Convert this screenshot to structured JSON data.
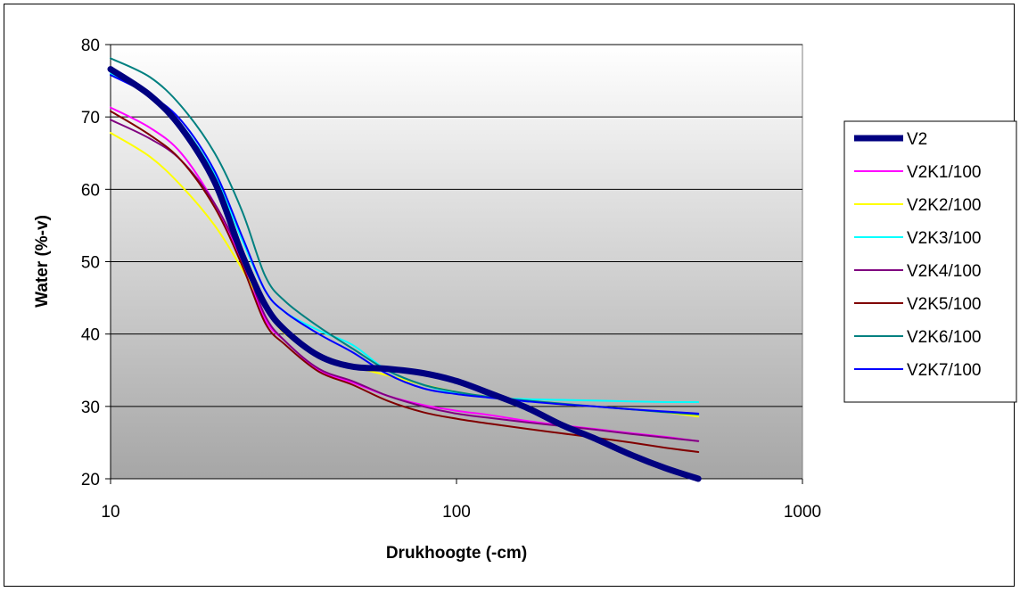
{
  "chart_data": {
    "type": "line",
    "title": "",
    "xlabel": "Drukhoogte (-cm)",
    "ylabel": "Water (%-v)",
    "xscale": "log",
    "xlim": [
      10,
      1000
    ],
    "ylim": [
      20,
      80
    ],
    "x_ticks": [
      "10",
      "100",
      "1000"
    ],
    "y_ticks": [
      "20",
      "30",
      "40",
      "50",
      "60",
      "70",
      "80"
    ],
    "grid": "horizontal",
    "legend_position": "right",
    "background": "gradient light-gray to dark-gray",
    "series": [
      {
        "name": "V2",
        "color": "#000080",
        "weight": "thick",
        "points": [
          [
            10,
            76.6
          ],
          [
            13,
            73
          ],
          [
            16,
            68.5
          ],
          [
            20,
            61
          ],
          [
            24,
            51
          ],
          [
            28,
            44
          ],
          [
            32,
            40.5
          ],
          [
            40,
            37
          ],
          [
            50,
            35.5
          ],
          [
            63,
            35.2
          ],
          [
            80,
            34.6
          ],
          [
            100,
            33.5
          ],
          [
            125,
            31.8
          ],
          [
            160,
            29.8
          ],
          [
            200,
            27.5
          ],
          [
            250,
            25.6
          ],
          [
            320,
            23.3
          ],
          [
            400,
            21.5
          ],
          [
            500,
            20
          ]
        ]
      },
      {
        "name": "V2K1/100",
        "color": "#ff00ff",
        "points": [
          [
            10,
            71.3
          ],
          [
            13,
            68.5
          ],
          [
            16,
            65
          ],
          [
            20,
            58
          ],
          [
            24,
            50
          ],
          [
            28,
            42
          ],
          [
            32,
            39
          ],
          [
            40,
            35
          ],
          [
            50,
            33.3
          ],
          [
            63,
            31.5
          ],
          [
            80,
            30.2
          ],
          [
            100,
            29.4
          ],
          [
            125,
            28.8
          ],
          [
            160,
            28
          ],
          [
            200,
            27.4
          ],
          [
            250,
            26.9
          ],
          [
            320,
            26.3
          ],
          [
            400,
            25.8
          ],
          [
            500,
            25.2
          ]
        ]
      },
      {
        "name": "V2K2/100",
        "color": "#ffff00",
        "points": [
          [
            10,
            67.8
          ],
          [
            13,
            64.5
          ],
          [
            16,
            60.5
          ],
          [
            20,
            55
          ],
          [
            24,
            49
          ],
          [
            28,
            43.5
          ],
          [
            32,
            40
          ],
          [
            40,
            37
          ],
          [
            50,
            35.5
          ],
          [
            63,
            34.3
          ],
          [
            80,
            33
          ],
          [
            100,
            32
          ],
          [
            125,
            31.3
          ],
          [
            160,
            30.8
          ],
          [
            200,
            30.3
          ],
          [
            250,
            30
          ],
          [
            320,
            29.6
          ],
          [
            400,
            29.2
          ],
          [
            500,
            28.6
          ]
        ]
      },
      {
        "name": "V2K3/100",
        "color": "#00ffff",
        "points": [
          [
            10,
            76
          ],
          [
            13,
            73
          ],
          [
            16,
            69
          ],
          [
            20,
            62
          ],
          [
            24,
            53
          ],
          [
            28,
            46
          ],
          [
            32,
            43
          ],
          [
            40,
            40.5
          ],
          [
            50,
            38.5
          ],
          [
            63,
            35
          ],
          [
            80,
            33
          ],
          [
            100,
            31.8
          ],
          [
            125,
            31.2
          ],
          [
            160,
            31
          ],
          [
            200,
            30.9
          ],
          [
            250,
            30.8
          ],
          [
            320,
            30.7
          ],
          [
            400,
            30.6
          ],
          [
            500,
            30.6
          ]
        ]
      },
      {
        "name": "V2K4/100",
        "color": "#800080",
        "points": [
          [
            10,
            69.6
          ],
          [
            13,
            67
          ],
          [
            16,
            64
          ],
          [
            20,
            58
          ],
          [
            24,
            50.5
          ],
          [
            28,
            42.5
          ],
          [
            32,
            39
          ],
          [
            40,
            35.2
          ],
          [
            50,
            33.5
          ],
          [
            63,
            31.5
          ],
          [
            80,
            30
          ],
          [
            100,
            29
          ],
          [
            125,
            28.4
          ],
          [
            160,
            27.8
          ],
          [
            200,
            27.3
          ],
          [
            250,
            26.8
          ],
          [
            320,
            26.2
          ],
          [
            400,
            25.7
          ],
          [
            500,
            25.2
          ]
        ]
      },
      {
        "name": "V2K5/100",
        "color": "#800000",
        "points": [
          [
            10,
            70.8
          ],
          [
            13,
            67.5
          ],
          [
            16,
            64
          ],
          [
            20,
            57.5
          ],
          [
            24,
            49.5
          ],
          [
            28,
            41.5
          ],
          [
            32,
            38.5
          ],
          [
            40,
            34.8
          ],
          [
            50,
            33
          ],
          [
            63,
            30.8
          ],
          [
            80,
            29.2
          ],
          [
            100,
            28.3
          ],
          [
            125,
            27.6
          ],
          [
            160,
            26.9
          ],
          [
            200,
            26.3
          ],
          [
            250,
            25.7
          ],
          [
            320,
            25
          ],
          [
            400,
            24.3
          ],
          [
            500,
            23.7
          ]
        ]
      },
      {
        "name": "V2K6/100",
        "color": "#008080",
        "points": [
          [
            10,
            78.1
          ],
          [
            13,
            75.5
          ],
          [
            16,
            71.5
          ],
          [
            20,
            65
          ],
          [
            24,
            57
          ],
          [
            28,
            48
          ],
          [
            32,
            44.5
          ],
          [
            40,
            41
          ],
          [
            50,
            38
          ],
          [
            63,
            35
          ],
          [
            80,
            33
          ],
          [
            100,
            32
          ],
          [
            125,
            31.3
          ],
          [
            160,
            30.8
          ],
          [
            200,
            30.4
          ],
          [
            250,
            30
          ],
          [
            320,
            29.6
          ],
          [
            400,
            29.2
          ],
          [
            500,
            28.9
          ]
        ]
      },
      {
        "name": "V2K7/100",
        "color": "#0000ff",
        "points": [
          [
            10,
            75.8
          ],
          [
            13,
            73
          ],
          [
            16,
            69.5
          ],
          [
            20,
            62.5
          ],
          [
            24,
            53.5
          ],
          [
            28,
            46
          ],
          [
            32,
            43
          ],
          [
            40,
            40
          ],
          [
            50,
            37.5
          ],
          [
            63,
            34.5
          ],
          [
            80,
            32.5
          ],
          [
            100,
            31.7
          ],
          [
            125,
            31.2
          ],
          [
            160,
            30.7
          ],
          [
            200,
            30.3
          ],
          [
            250,
            30
          ],
          [
            320,
            29.6
          ],
          [
            400,
            29.3
          ],
          [
            500,
            29
          ]
        ]
      }
    ]
  }
}
